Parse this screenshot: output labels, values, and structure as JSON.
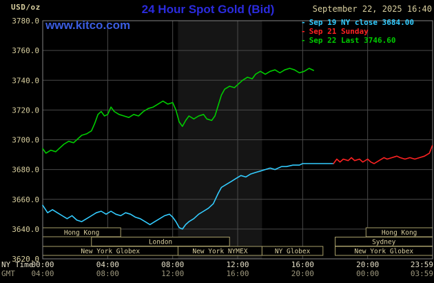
{
  "header": {
    "units": "USD/oz",
    "title": "24 Hour Spot Gold (Bid)",
    "datetime": "September 22, 2025 16:40",
    "watermark": "www.kitco.com"
  },
  "legend": {
    "items": [
      {
        "id": "sep19",
        "marker": "-",
        "label": "Sep 19 NY close 3684.00",
        "color": "#33ccff"
      },
      {
        "id": "sep21",
        "marker": "-",
        "label": "Sep 21 Sunday",
        "color": "#ff2222"
      },
      {
        "id": "sep22",
        "marker": "-",
        "label": "Sep 22 Last 3746.60",
        "color": "#00cc00"
      }
    ]
  },
  "colors": {
    "background": "#000000",
    "title": "#2b2bdd",
    "watermark": "#3b5de0",
    "tan": "#d9cf9f",
    "grid": "#4a4a4a",
    "border": "#858585",
    "session_border": "#a89f6a",
    "session_text": "#d9cf9f",
    "nymex_band": "#151515",
    "ny_text": "#e6e0c8",
    "gmt_text": "#9d977d"
  },
  "axes": {
    "ny_axis_label": "NY Time",
    "gmt_axis_label": "GMT",
    "y_ticks": [
      "3780.0",
      "3760.0",
      "3740.0",
      "3720.0",
      "3700.0",
      "3680.0",
      "3660.0",
      "3640.0",
      "3620.0"
    ],
    "x_ticks": [
      {
        "h": 0,
        "ny": "00:00",
        "gmt": "04:00"
      },
      {
        "h": 4,
        "ny": "04:00",
        "gmt": "08:00"
      },
      {
        "h": 8,
        "ny": "08:00",
        "gmt": "12:00"
      },
      {
        "h": 12,
        "ny": "12:00",
        "gmt": "16:00"
      },
      {
        "h": 16,
        "ny": "16:00",
        "gmt": "20:00"
      },
      {
        "h": 20,
        "ny": "20:00",
        "gmt": "00:00"
      },
      {
        "h": 24,
        "ny": "23:59",
        "gmt": "03:59"
      }
    ]
  },
  "nymex_floor_band": {
    "start_hour": 8.33,
    "end_hour": 13.5
  },
  "sessions": [
    {
      "row": 0,
      "label": "Hong Kong",
      "start_hour": 0,
      "end_hour": 4.8
    },
    {
      "row": 0,
      "label": "Hong Kong",
      "start_hour": 19.9,
      "end_hour": 24
    },
    {
      "row": 1,
      "label": "London",
      "start_hour": 3.0,
      "end_hour": 11.5
    },
    {
      "row": 1,
      "label": "Sydney",
      "start_hour": 18.0,
      "end_hour": 24
    },
    {
      "row": 2,
      "label": "New York Globex",
      "start_hour": 0,
      "end_hour": 8.33
    },
    {
      "row": 2,
      "label": "New York NYMEX",
      "start_hour": 8.33,
      "end_hour": 13.5
    },
    {
      "row": 2,
      "label": "NY Globex",
      "start_hour": 13.5,
      "end_hour": 17.25
    },
    {
      "row": 2,
      "label": "New York Globex",
      "start_hour": 18.0,
      "end_hour": 24
    }
  ],
  "chart_data": {
    "type": "line",
    "title": "24 Hour Spot Gold (Bid)",
    "xlabel": "NY Time (hours, 00:00 - 23:59)",
    "ylabel": "USD/oz",
    "xlim": [
      0,
      24
    ],
    "ylim": [
      3620,
      3780
    ],
    "grid": true,
    "legend_position": "top-right",
    "series": [
      {
        "id": "sep19",
        "name": "Sep 19 NY close",
        "color": "#33ccff",
        "close_value": 3684.0,
        "points": [
          [
            0,
            3656
          ],
          [
            0.3,
            3651
          ],
          [
            0.6,
            3653
          ],
          [
            0.9,
            3651
          ],
          [
            1.2,
            3649
          ],
          [
            1.5,
            3647
          ],
          [
            1.8,
            3649
          ],
          [
            2.1,
            3646
          ],
          [
            2.4,
            3645
          ],
          [
            2.7,
            3647
          ],
          [
            3,
            3649
          ],
          [
            3.3,
            3651
          ],
          [
            3.6,
            3652
          ],
          [
            3.9,
            3650
          ],
          [
            4.2,
            3652
          ],
          [
            4.5,
            3650
          ],
          [
            4.8,
            3649
          ],
          [
            5.1,
            3651
          ],
          [
            5.4,
            3650
          ],
          [
            5.7,
            3648
          ],
          [
            6,
            3647
          ],
          [
            6.3,
            3645
          ],
          [
            6.6,
            3643
          ],
          [
            6.9,
            3645
          ],
          [
            7.2,
            3647
          ],
          [
            7.5,
            3649
          ],
          [
            7.8,
            3650
          ],
          [
            8,
            3648
          ],
          [
            8.2,
            3645
          ],
          [
            8.4,
            3641
          ],
          [
            8.6,
            3640
          ],
          [
            8.8,
            3643
          ],
          [
            9,
            3645
          ],
          [
            9.3,
            3647
          ],
          [
            9.6,
            3650
          ],
          [
            9.9,
            3652
          ],
          [
            10.2,
            3654
          ],
          [
            10.5,
            3657
          ],
          [
            10.8,
            3664
          ],
          [
            11,
            3668
          ],
          [
            11.3,
            3670
          ],
          [
            11.6,
            3672
          ],
          [
            11.9,
            3674
          ],
          [
            12.2,
            3676
          ],
          [
            12.5,
            3675
          ],
          [
            12.8,
            3677
          ],
          [
            13.1,
            3678
          ],
          [
            13.4,
            3679
          ],
          [
            13.7,
            3680
          ],
          [
            14,
            3681
          ],
          [
            14.3,
            3680
          ],
          [
            14.7,
            3682
          ],
          [
            15,
            3682
          ],
          [
            15.4,
            3683
          ],
          [
            15.8,
            3683
          ],
          [
            16,
            3684
          ],
          [
            17.9,
            3684
          ]
        ]
      },
      {
        "id": "sep21",
        "name": "Sep 21 Sunday",
        "color": "#ff2222",
        "points": [
          [
            17.9,
            3684
          ],
          [
            18.1,
            3687
          ],
          [
            18.3,
            3685
          ],
          [
            18.5,
            3687
          ],
          [
            18.8,
            3686
          ],
          [
            19,
            3688
          ],
          [
            19.2,
            3686
          ],
          [
            19.5,
            3687
          ],
          [
            19.7,
            3685
          ],
          [
            20,
            3687
          ],
          [
            20.2,
            3685
          ],
          [
            20.4,
            3684
          ],
          [
            20.7,
            3686
          ],
          [
            21,
            3688
          ],
          [
            21.2,
            3687
          ],
          [
            21.5,
            3688
          ],
          [
            21.8,
            3689
          ],
          [
            22,
            3688
          ],
          [
            22.3,
            3687
          ],
          [
            22.6,
            3688
          ],
          [
            22.9,
            3687
          ],
          [
            23.2,
            3688
          ],
          [
            23.5,
            3689
          ],
          [
            23.8,
            3691
          ],
          [
            23.98,
            3696
          ]
        ]
      },
      {
        "id": "sep22",
        "name": "Sep 22",
        "color": "#00cc00",
        "last_value": 3746.6,
        "points": [
          [
            0,
            3694
          ],
          [
            0.2,
            3691
          ],
          [
            0.5,
            3693
          ],
          [
            0.8,
            3692
          ],
          [
            1,
            3694
          ],
          [
            1.3,
            3697
          ],
          [
            1.6,
            3699
          ],
          [
            1.9,
            3698
          ],
          [
            2.1,
            3700
          ],
          [
            2.4,
            3703
          ],
          [
            2.7,
            3704
          ],
          [
            3,
            3706
          ],
          [
            3.2,
            3711
          ],
          [
            3.4,
            3717
          ],
          [
            3.6,
            3719
          ],
          [
            3.8,
            3716
          ],
          [
            4,
            3717
          ],
          [
            4.2,
            3722
          ],
          [
            4.4,
            3719
          ],
          [
            4.7,
            3717
          ],
          [
            5,
            3716
          ],
          [
            5.3,
            3715
          ],
          [
            5.6,
            3717
          ],
          [
            5.9,
            3716
          ],
          [
            6.2,
            3719
          ],
          [
            6.5,
            3721
          ],
          [
            6.8,
            3722
          ],
          [
            7.1,
            3724
          ],
          [
            7.4,
            3726
          ],
          [
            7.7,
            3724
          ],
          [
            8,
            3725
          ],
          [
            8.2,
            3720
          ],
          [
            8.4,
            3712
          ],
          [
            8.6,
            3709
          ],
          [
            8.8,
            3713
          ],
          [
            9,
            3716
          ],
          [
            9.3,
            3714
          ],
          [
            9.6,
            3716
          ],
          [
            9.9,
            3717
          ],
          [
            10.1,
            3714
          ],
          [
            10.4,
            3713
          ],
          [
            10.6,
            3716
          ],
          [
            10.8,
            3723
          ],
          [
            11,
            3730
          ],
          [
            11.2,
            3734
          ],
          [
            11.5,
            3736
          ],
          [
            11.8,
            3735
          ],
          [
            12,
            3737
          ],
          [
            12.3,
            3740
          ],
          [
            12.6,
            3742
          ],
          [
            12.9,
            3741
          ],
          [
            13.1,
            3744
          ],
          [
            13.4,
            3746
          ],
          [
            13.7,
            3744
          ],
          [
            14,
            3746
          ],
          [
            14.3,
            3747
          ],
          [
            14.6,
            3745
          ],
          [
            14.9,
            3747
          ],
          [
            15.2,
            3748
          ],
          [
            15.5,
            3747
          ],
          [
            15.8,
            3745
          ],
          [
            16.1,
            3746
          ],
          [
            16.4,
            3748
          ],
          [
            16.67,
            3746.6
          ]
        ]
      }
    ]
  }
}
